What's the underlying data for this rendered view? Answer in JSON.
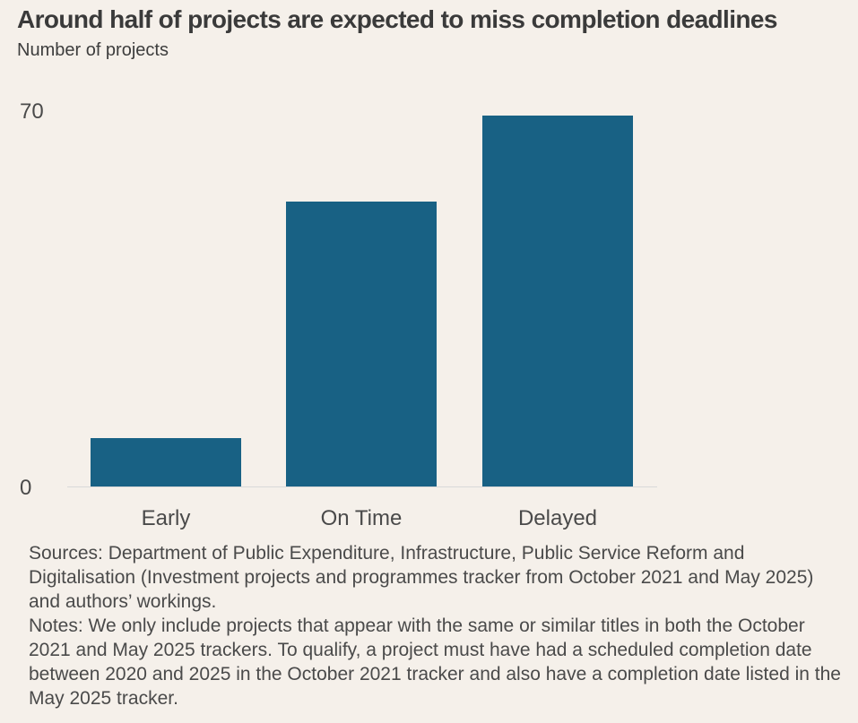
{
  "chart_data": {
    "type": "bar",
    "title": "Around half of projects are expected to miss completion deadlines",
    "ylabel": "Number of projects",
    "xlabel": "",
    "categories": [
      "Early",
      "On Time",
      "Delayed"
    ],
    "values": [
      9,
      53,
      69
    ],
    "ylim": [
      0,
      70
    ],
    "yticks": [
      "0",
      "70"
    ],
    "grid": false,
    "colors": {
      "bar": "#186184",
      "axis": "#d9d9d9",
      "background": "#f5f0ea"
    }
  },
  "footnotes": {
    "sources": "Sources: Department of Public Expenditure, Infrastructure, Public Service Reform and Digitalisation (Investment projects and programmes tracker from October 2021 and May 2025) and authors’ workings.",
    "notes": "Notes: We only include projects that appear with the same or similar titles in both the October 2021 and May 2025 trackers. To qualify, a project must have had a scheduled completion date between 2020 and 2025 in the October 2021 tracker and also have a completion date listed in the May 2025 tracker."
  }
}
